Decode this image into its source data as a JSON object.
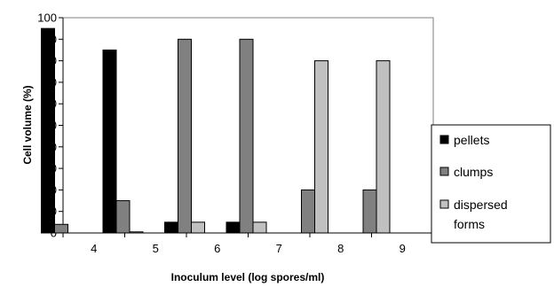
{
  "chart_data": {
    "type": "bar",
    "title": "",
    "xlabel": "Inoculum level (log spores/ml)",
    "ylabel": "Cell volume (%)",
    "ylim": [
      0,
      100
    ],
    "yticks": [
      0,
      10,
      20,
      30,
      40,
      50,
      60,
      70,
      80,
      90,
      100
    ],
    "categories": [
      "4",
      "5",
      "6",
      "7",
      "8",
      "9"
    ],
    "series": [
      {
        "name": "pellets",
        "values": [
          95,
          85,
          5,
          5,
          0,
          0
        ],
        "color": "#000000"
      },
      {
        "name": "clumps",
        "values": [
          4,
          15,
          90,
          90,
          20,
          20
        ],
        "color": "#808080"
      },
      {
        "name": "dispersed forms",
        "values": [
          0,
          0.5,
          5,
          5,
          80,
          80
        ],
        "color": "#c0c0c0"
      }
    ],
    "legend": {
      "position": "right",
      "labels": [
        "pellets",
        "clumps",
        "dispersed",
        "forms"
      ]
    },
    "grid": false
  }
}
